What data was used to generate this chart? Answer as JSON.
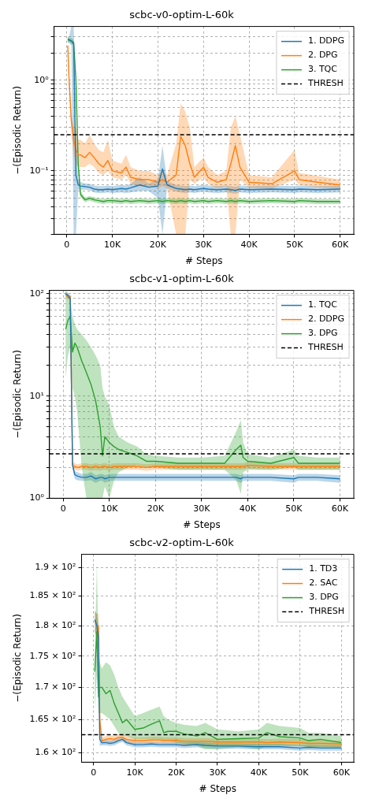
{
  "chart_data": [
    {
      "type": "line",
      "title": "scbc-v0-optim-L-60k",
      "xlabel": "# Steps",
      "ylabel": "−(Episodic Return)",
      "log": "y",
      "grid": true,
      "legend": "top right",
      "xlim": [
        -2800,
        63000
      ],
      "xticks": [
        {
          "value": 0,
          "label": "0"
        },
        {
          "value": 10000,
          "label": "10K"
        },
        {
          "value": 20000,
          "label": "20K"
        },
        {
          "value": 30000,
          "label": "30K"
        },
        {
          "value": 40000,
          "label": "40K"
        },
        {
          "value": 50000,
          "label": "50K"
        },
        {
          "value": 60000,
          "label": "60K"
        }
      ],
      "ylim": [
        0.02,
        3.9
      ],
      "yticks": [
        {
          "value": 0.02,
          "label": null
        },
        {
          "value": 0.03,
          "label": null
        },
        {
          "value": 0.04,
          "label": null
        },
        {
          "value": 0.05,
          "label": null
        },
        {
          "value": 0.06,
          "label": null
        },
        {
          "value": 0.07,
          "label": null
        },
        {
          "value": 0.08,
          "label": null
        },
        {
          "value": 0.09,
          "label": null
        },
        {
          "value": 0.1,
          "label": "10⁻¹"
        },
        {
          "value": 0.2,
          "label": null
        },
        {
          "value": 0.3,
          "label": null
        },
        {
          "value": 0.4,
          "label": null
        },
        {
          "value": 0.5,
          "label": null
        },
        {
          "value": 0.6,
          "label": null
        },
        {
          "value": 0.7,
          "label": null
        },
        {
          "value": 0.8,
          "label": null
        },
        {
          "value": 0.9,
          "label": null
        },
        {
          "value": 1,
          "label": "10⁰"
        },
        {
          "value": 2,
          "label": null
        },
        {
          "value": 3,
          "label": null
        }
      ],
      "ref_lines": [
        {
          "axis": "y",
          "value": 0.25,
          "label": "THRESH",
          "line_style": "dashed"
        }
      ],
      "series": [
        {
          "name": "1. DDPG",
          "color": "#1f77b4",
          "x": [
            200,
            500,
            1000,
            1500,
            2000,
            2500,
            3000,
            4000,
            5000,
            6000,
            7000,
            8000,
            9000,
            10000,
            12000,
            13000,
            14000,
            16000,
            18000,
            20000,
            21000,
            22000,
            24000,
            25000,
            26000,
            27000,
            28000,
            30000,
            31000,
            33000,
            35000,
            36000,
            37000,
            38000,
            40000,
            45000,
            50000,
            51000,
            55000,
            60000
          ],
          "values": [
            2.8,
            2.8,
            2.7,
            2.5,
            0.09,
            0.07,
            0.068,
            0.067,
            0.066,
            0.063,
            0.062,
            0.062,
            0.063,
            0.062,
            0.064,
            0.063,
            0.065,
            0.07,
            0.066,
            0.068,
            0.105,
            0.07,
            0.064,
            0.063,
            0.062,
            0.063,
            0.062,
            0.064,
            0.063,
            0.062,
            0.063,
            0.062,
            0.061,
            0.063,
            0.062,
            0.063,
            0.062,
            0.063,
            0.062,
            0.063
          ],
          "lower": [
            2.6,
            2.6,
            2.4,
            0.02,
            0.02,
            0.062,
            0.062,
            0.062,
            0.061,
            0.058,
            0.057,
            0.057,
            0.058,
            0.057,
            0.058,
            0.057,
            0.058,
            0.06,
            0.06,
            0.05,
            0.02,
            0.064,
            0.059,
            0.058,
            0.057,
            0.058,
            0.057,
            0.059,
            0.058,
            0.057,
            0.058,
            0.057,
            0.056,
            0.058,
            0.057,
            0.058,
            0.057,
            0.058,
            0.057,
            0.058
          ],
          "upper": [
            3,
            3,
            3.9,
            3.9,
            0.3,
            0.08,
            0.075,
            0.073,
            0.072,
            0.069,
            0.068,
            0.068,
            0.069,
            0.068,
            0.07,
            0.069,
            0.072,
            0.085,
            0.073,
            0.08,
            0.19,
            0.077,
            0.07,
            0.069,
            0.068,
            0.069,
            0.068,
            0.07,
            0.069,
            0.068,
            0.069,
            0.068,
            0.067,
            0.069,
            0.068,
            0.069,
            0.068,
            0.069,
            0.068,
            0.069
          ]
        },
        {
          "name": "2. DPG",
          "color": "#ff7f0e",
          "x": [
            200,
            500,
            1000,
            1500,
            2000,
            2500,
            3000,
            4000,
            5000,
            6000,
            7000,
            8000,
            9000,
            10000,
            12000,
            13000,
            14000,
            16000,
            18000,
            20000,
            21000,
            22000,
            24000,
            25000,
            26000,
            27000,
            28000,
            30000,
            31000,
            33000,
            35000,
            36000,
            37000,
            38000,
            40000,
            45000,
            50000,
            51000,
            55000,
            60000
          ],
          "values": [
            2.4,
            1.0,
            0.35,
            0.22,
            0.17,
            0.15,
            0.15,
            0.14,
            0.16,
            0.14,
            0.12,
            0.11,
            0.13,
            0.1,
            0.095,
            0.11,
            0.085,
            0.08,
            0.08,
            0.075,
            0.08,
            0.075,
            0.09,
            0.24,
            0.19,
            0.12,
            0.085,
            0.11,
            0.085,
            0.075,
            0.08,
            0.12,
            0.19,
            0.11,
            0.075,
            0.072,
            0.1,
            0.08,
            0.075,
            0.07
          ],
          "lower": [
            2.2,
            0.8,
            0.25,
            0.15,
            0.12,
            0.11,
            0.11,
            0.11,
            0.12,
            0.11,
            0.095,
            0.09,
            0.1,
            0.085,
            0.08,
            0.09,
            0.072,
            0.068,
            0.068,
            0.064,
            0.068,
            0.064,
            0.02,
            0.02,
            0.02,
            0.08,
            0.072,
            0.085,
            0.072,
            0.064,
            0.068,
            0.02,
            0.02,
            0.08,
            0.065,
            0.064,
            0.08,
            0.07,
            0.066,
            0.064
          ],
          "upper": [
            2.6,
            1.2,
            0.45,
            0.3,
            0.3,
            0.22,
            0.22,
            0.2,
            0.25,
            0.2,
            0.17,
            0.16,
            0.22,
            0.13,
            0.12,
            0.15,
            0.11,
            0.1,
            0.1,
            0.09,
            0.1,
            0.09,
            0.2,
            0.55,
            0.45,
            0.3,
            0.11,
            0.14,
            0.11,
            0.09,
            0.1,
            0.3,
            0.4,
            0.25,
            0.09,
            0.085,
            0.17,
            0.095,
            0.088,
            0.08
          ]
        },
        {
          "name": "3. TQC",
          "color": "#2ca02c",
          "x": [
            200,
            500,
            1000,
            1500,
            2000,
            2500,
            3000,
            4000,
            5000,
            6000,
            7000,
            8000,
            9000,
            10000,
            12000,
            13000,
            14000,
            16000,
            18000,
            20000,
            21000,
            22000,
            24000,
            25000,
            26000,
            27000,
            28000,
            30000,
            31000,
            33000,
            35000,
            36000,
            37000,
            38000,
            40000,
            45000,
            50000,
            51000,
            55000,
            60000
          ],
          "values": [
            2.8,
            2.75,
            2.7,
            2.6,
            1.0,
            0.12,
            0.055,
            0.048,
            0.05,
            0.048,
            0.047,
            0.046,
            0.047,
            0.047,
            0.046,
            0.047,
            0.046,
            0.047,
            0.046,
            0.047,
            0.046,
            0.047,
            0.046,
            0.047,
            0.046,
            0.047,
            0.046,
            0.047,
            0.046,
            0.047,
            0.046,
            0.047,
            0.046,
            0.047,
            0.046,
            0.047,
            0.046,
            0.047,
            0.046,
            0.046
          ],
          "lower": [
            2.6,
            2.6,
            2.5,
            2.4,
            0.9,
            0.1,
            0.051,
            0.045,
            0.047,
            0.045,
            0.044,
            0.043,
            0.044,
            0.044,
            0.043,
            0.044,
            0.043,
            0.044,
            0.043,
            0.044,
            0.043,
            0.044,
            0.043,
            0.044,
            0.043,
            0.044,
            0.043,
            0.044,
            0.043,
            0.044,
            0.043,
            0.044,
            0.043,
            0.044,
            0.043,
            0.044,
            0.043,
            0.044,
            0.043,
            0.043
          ],
          "upper": [
            3,
            2.9,
            2.9,
            2.8,
            1.1,
            0.14,
            0.06,
            0.051,
            0.053,
            0.051,
            0.05,
            0.049,
            0.05,
            0.05,
            0.049,
            0.05,
            0.049,
            0.05,
            0.049,
            0.05,
            0.049,
            0.05,
            0.049,
            0.05,
            0.049,
            0.05,
            0.049,
            0.05,
            0.049,
            0.05,
            0.049,
            0.05,
            0.049,
            0.05,
            0.049,
            0.05,
            0.049,
            0.05,
            0.049,
            0.049
          ]
        }
      ]
    },
    {
      "type": "line",
      "title": "scbc-v1-optim-L-60k",
      "xlabel": "# Steps",
      "ylabel": "−(Episodic Return)",
      "log": "y",
      "grid": true,
      "legend": "top right",
      "xlim": [
        -3000,
        63000
      ],
      "xticks": [
        {
          "value": 0,
          "label": "0"
        },
        {
          "value": 10000,
          "label": "10K"
        },
        {
          "value": 20000,
          "label": "20K"
        },
        {
          "value": 30000,
          "label": "30K"
        },
        {
          "value": 40000,
          "label": "40K"
        },
        {
          "value": 50000,
          "label": "50K"
        },
        {
          "value": 60000,
          "label": "60K"
        }
      ],
      "ylim": [
        1,
        108
      ],
      "yticks": [
        {
          "value": 1,
          "label": "10⁰"
        },
        {
          "value": 2,
          "label": null
        },
        {
          "value": 3,
          "label": null
        },
        {
          "value": 4,
          "label": null
        },
        {
          "value": 5,
          "label": null
        },
        {
          "value": 6,
          "label": null
        },
        {
          "value": 7,
          "label": null
        },
        {
          "value": 8,
          "label": null
        },
        {
          "value": 9,
          "label": null
        },
        {
          "value": 10,
          "label": "10¹"
        },
        {
          "value": 20,
          "label": null
        },
        {
          "value": 30,
          "label": null
        },
        {
          "value": 40,
          "label": null
        },
        {
          "value": 50,
          "label": null
        },
        {
          "value": 60,
          "label": null
        },
        {
          "value": 70,
          "label": null
        },
        {
          "value": 80,
          "label": null
        },
        {
          "value": 90,
          "label": null
        },
        {
          "value": 100,
          "label": "10²"
        }
      ],
      "ref_lines": [
        {
          "axis": "y",
          "value": 2.72,
          "label": "THRESH",
          "line_style": "dashed"
        }
      ],
      "series": [
        {
          "name": "1. TQC",
          "color": "#1f77b4",
          "x": [
            500,
            1000,
            1500,
            2000,
            2500,
            3000,
            4000,
            5000,
            6000,
            7000,
            8000,
            8500,
            9000,
            10000,
            11000,
            12000,
            14000,
            16000,
            18000,
            20000,
            25000,
            30000,
            35000,
            37500,
            38500,
            39000,
            40000,
            45000,
            50000,
            51000,
            55000,
            60000
          ],
          "values": [
            100,
            97,
            90,
            2.1,
            1.7,
            1.65,
            1.6,
            1.6,
            1.65,
            1.55,
            1.6,
            1.6,
            1.55,
            1.6,
            1.6,
            1.6,
            1.6,
            1.6,
            1.6,
            1.6,
            1.6,
            1.6,
            1.6,
            1.6,
            1.55,
            1.6,
            1.6,
            1.6,
            1.55,
            1.6,
            1.6,
            1.55
          ],
          "lower": [
            95,
            92,
            85,
            1.9,
            1.55,
            1.5,
            1.48,
            1.48,
            1.5,
            1.42,
            1.48,
            1.48,
            1.42,
            1.48,
            1.48,
            1.48,
            1.48,
            1.48,
            1.48,
            1.48,
            1.48,
            1.48,
            1.48,
            1.48,
            1.42,
            1.48,
            1.48,
            1.48,
            1.42,
            1.48,
            1.48,
            1.42
          ],
          "upper": [
            105,
            102,
            95,
            2.3,
            1.85,
            1.8,
            1.73,
            1.73,
            1.8,
            1.68,
            1.73,
            1.73,
            1.68,
            1.73,
            1.73,
            1.73,
            1.73,
            1.73,
            1.73,
            1.73,
            1.73,
            1.73,
            1.73,
            1.73,
            1.68,
            1.73,
            1.73,
            1.73,
            1.68,
            1.73,
            1.73,
            1.68
          ]
        },
        {
          "name": "2. DDPG",
          "color": "#ff7f0e",
          "x": [
            500,
            1000,
            1500,
            2000,
            2500,
            3000,
            4000,
            5000,
            6000,
            7000,
            8000,
            8500,
            9000,
            10000,
            11000,
            12000,
            14000,
            16000,
            18000,
            20000,
            25000,
            30000,
            35000,
            37500,
            38500,
            39000,
            40000,
            45000,
            50000,
            51000,
            55000,
            60000
          ],
          "values": [
            100,
            92,
            95,
            2.1,
            2.05,
            2.0,
            2.05,
            2.05,
            2.0,
            2.05,
            2.0,
            2.05,
            2.05,
            2.0,
            2.05,
            2.05,
            2.05,
            2.05,
            2.0,
            2.05,
            2.05,
            2.05,
            2.05,
            2.05,
            2.05,
            2.05,
            2.1,
            2.05,
            2.05,
            2.05,
            2.05,
            2.05
          ],
          "lower": [
            95,
            87,
            90,
            1.95,
            1.9,
            1.86,
            1.9,
            1.9,
            1.86,
            1.9,
            1.86,
            1.9,
            1.9,
            1.86,
            1.9,
            1.9,
            1.9,
            1.9,
            1.86,
            1.9,
            1.9,
            1.9,
            1.9,
            1.9,
            1.9,
            1.9,
            1.95,
            1.9,
            1.9,
            1.9,
            1.9,
            1.9
          ],
          "upper": [
            105,
            97,
            100,
            2.3,
            2.2,
            2.15,
            2.2,
            2.2,
            2.15,
            2.2,
            2.15,
            2.2,
            2.2,
            2.15,
            2.2,
            2.2,
            2.2,
            2.2,
            2.15,
            2.2,
            2.2,
            2.2,
            2.2,
            2.2,
            2.2,
            2.2,
            2.25,
            2.2,
            2.2,
            2.2,
            2.2,
            2.2
          ]
        },
        {
          "name": "3. DPG",
          "color": "#2ca02c",
          "x": [
            500,
            1000,
            1500,
            2000,
            2500,
            3000,
            4000,
            5000,
            6000,
            7000,
            8000,
            8500,
            9000,
            10000,
            11000,
            12000,
            14000,
            16000,
            18000,
            20000,
            25000,
            30000,
            35000,
            37500,
            38500,
            39000,
            40000,
            45000,
            50000,
            51000,
            55000,
            60000
          ],
          "values": [
            45,
            55,
            60,
            27,
            33,
            30,
            22,
            17,
            13,
            9,
            5,
            2.6,
            4,
            3.5,
            3.2,
            3.0,
            2.8,
            2.6,
            2.3,
            2.3,
            2.2,
            2.2,
            2.2,
            3.0,
            3.3,
            2.5,
            2.3,
            2.2,
            2.5,
            2.2,
            2.2,
            2.2
          ],
          "lower": [
            15,
            25,
            30,
            12,
            10,
            7,
            2,
            1,
            1,
            1,
            1,
            1,
            1.3,
            1,
            1.5,
            1.8,
            2,
            2.1,
            2,
            2,
            1.9,
            1.9,
            1.9,
            1.5,
            1.1,
            1.8,
            1.9,
            1.9,
            2,
            1.9,
            1.9,
            1.9
          ],
          "upper": [
            108,
            100,
            90,
            60,
            50,
            45,
            40,
            35,
            30,
            25,
            20,
            12,
            10,
            8,
            5,
            4,
            3.5,
            3.2,
            2.7,
            2.6,
            2.5,
            2.5,
            2.6,
            4.5,
            5.8,
            3.5,
            2.7,
            2.5,
            3,
            2.6,
            2.5,
            2.5
          ]
        }
      ]
    },
    {
      "type": "line",
      "title": "scbc-v2-optim-L-60k",
      "xlabel": "# Steps",
      "ylabel": "−(Episodic Return)",
      "log": "y",
      "grid": true,
      "legend": "top right",
      "xlim": [
        -2900,
        63000
      ],
      "xticks": [
        {
          "value": 0,
          "label": "0"
        },
        {
          "value": 10000,
          "label": "10K"
        },
        {
          "value": 20000,
          "label": "20K"
        },
        {
          "value": 30000,
          "label": "30K"
        },
        {
          "value": 40000,
          "label": "40K"
        },
        {
          "value": 50000,
          "label": "50K"
        },
        {
          "value": 60000,
          "label": "60K"
        }
      ],
      "ylim": [
        158.6,
        192.3
      ],
      "yticks": [
        {
          "value": 160,
          "label": "1.6 × 10²"
        },
        {
          "value": 165,
          "label": "1.65 × 10²"
        },
        {
          "value": 170,
          "label": "1.7 × 10²"
        },
        {
          "value": 175,
          "label": "1.75 × 10²"
        },
        {
          "value": 180,
          "label": "1.8 × 10²"
        },
        {
          "value": 185,
          "label": "1.85 × 10²"
        },
        {
          "value": 190,
          "label": "1.9 × 10²"
        }
      ],
      "ref_lines": [
        {
          "axis": "y",
          "value": 162.7,
          "label": "THRESH",
          "line_style": "dashed"
        }
      ],
      "series": [
        {
          "name": "1. TD3",
          "color": "#1f77b4",
          "x": [
            300,
            800,
            1200,
            1500,
            2000,
            3000,
            4000,
            5000,
            6000,
            7000,
            8000,
            10000,
            12000,
            14000,
            16000,
            17000,
            18000,
            20000,
            22000,
            25000,
            27000,
            30000,
            35000,
            40000,
            42000,
            45000,
            50000,
            52000,
            55000,
            60000
          ],
          "values": [
            181,
            180,
            178,
            162,
            161.5,
            161.5,
            161.4,
            161.5,
            161.8,
            162,
            161.5,
            161.2,
            161.2,
            161.3,
            161.2,
            161.2,
            161.2,
            161.2,
            161.1,
            161.2,
            161.1,
            161,
            161,
            160.9,
            160.9,
            160.9,
            160.7,
            160.8,
            160.7,
            160.7
          ],
          "lower": [
            179,
            178,
            176,
            161,
            161.1,
            161.1,
            161,
            161.1,
            161.4,
            161.6,
            161.1,
            160.8,
            160.8,
            160.9,
            160.8,
            160.8,
            160.8,
            160.8,
            160.7,
            160.8,
            160.7,
            160.6,
            160.6,
            160.5,
            160.5,
            160.5,
            160.3,
            160.4,
            160.3,
            160.3
          ],
          "upper": [
            182.5,
            182,
            180,
            163,
            161.9,
            161.9,
            161.8,
            161.9,
            162.2,
            162.4,
            161.9,
            161.6,
            161.6,
            161.7,
            161.6,
            161.6,
            161.6,
            161.6,
            161.5,
            161.6,
            161.5,
            161.4,
            161.4,
            161.3,
            161.3,
            161.3,
            161.1,
            161.2,
            161.1,
            161.1
          ]
        },
        {
          "name": "2. SAC",
          "color": "#ff7f0e",
          "x": [
            300,
            800,
            1200,
            1500,
            2000,
            3000,
            4000,
            5000,
            6000,
            7000,
            8000,
            10000,
            12000,
            14000,
            16000,
            17000,
            18000,
            20000,
            22000,
            25000,
            27000,
            30000,
            35000,
            40000,
            42000,
            45000,
            50000,
            52000,
            55000,
            60000
          ],
          "values": [
            181,
            180,
            180,
            165,
            161.8,
            162,
            162.1,
            162,
            162.3,
            162.3,
            162,
            161.8,
            161.8,
            161.9,
            161.9,
            161.8,
            161.8,
            161.8,
            161.7,
            161.7,
            161.7,
            161.6,
            161.6,
            161.6,
            161.5,
            161.6,
            161.5,
            161.4,
            161.4,
            161.3
          ],
          "lower": [
            179,
            178,
            178,
            163,
            161.3,
            161.5,
            161.6,
            161.5,
            161.8,
            161.8,
            161.5,
            161.3,
            161.3,
            161.4,
            161.4,
            161.3,
            161.3,
            161.3,
            161.2,
            161.2,
            161.2,
            161.1,
            161.1,
            161.1,
            161,
            161.1,
            161,
            160.9,
            160.9,
            160.8
          ],
          "upper": [
            182.5,
            182,
            182,
            167,
            162.3,
            162.5,
            162.6,
            162.5,
            162.8,
            162.8,
            162.5,
            162.3,
            162.3,
            162.4,
            162.4,
            162.3,
            162.3,
            162.3,
            162.2,
            162.2,
            162.2,
            162.1,
            162.1,
            162.1,
            162,
            162.1,
            162,
            161.9,
            161.9,
            161.8
          ]
        },
        {
          "name": "3. DPG",
          "color": "#2ca02c",
          "x": [
            300,
            800,
            1200,
            1500,
            2000,
            3000,
            4000,
            5000,
            6000,
            7000,
            8000,
            10000,
            12000,
            14000,
            16000,
            17000,
            18000,
            20000,
            22000,
            25000,
            27000,
            30000,
            35000,
            40000,
            42000,
            45000,
            50000,
            52000,
            55000,
            60000
          ],
          "values": [
            172.5,
            179,
            168.5,
            170,
            170,
            169,
            169.5,
            167.5,
            166,
            164.5,
            165,
            163.5,
            163.7,
            164.3,
            164.8,
            163,
            163.2,
            163.2,
            162.8,
            162.5,
            163,
            162,
            162.1,
            162.2,
            163,
            162.4,
            162.2,
            161.8,
            162,
            161.5
          ],
          "lower": [
            166.5,
            172,
            166,
            166,
            166,
            165.5,
            165,
            164,
            163,
            162.5,
            162.5,
            162,
            162,
            162,
            162,
            161.8,
            161.8,
            161.5,
            161.3,
            161,
            160.5,
            160.5,
            160.8,
            160.5,
            161,
            161,
            161,
            160.8,
            160.8,
            160.8
          ],
          "upper": [
            175,
            190.5,
            176,
            174,
            173,
            174,
            173.5,
            172,
            170,
            168.5,
            167.5,
            165.5,
            166,
            166.5,
            167,
            165.5,
            165,
            164.5,
            164.2,
            164,
            164.5,
            163.5,
            163.2,
            163.5,
            164.5,
            164,
            163.7,
            163,
            163,
            162.5
          ]
        }
      ]
    }
  ]
}
